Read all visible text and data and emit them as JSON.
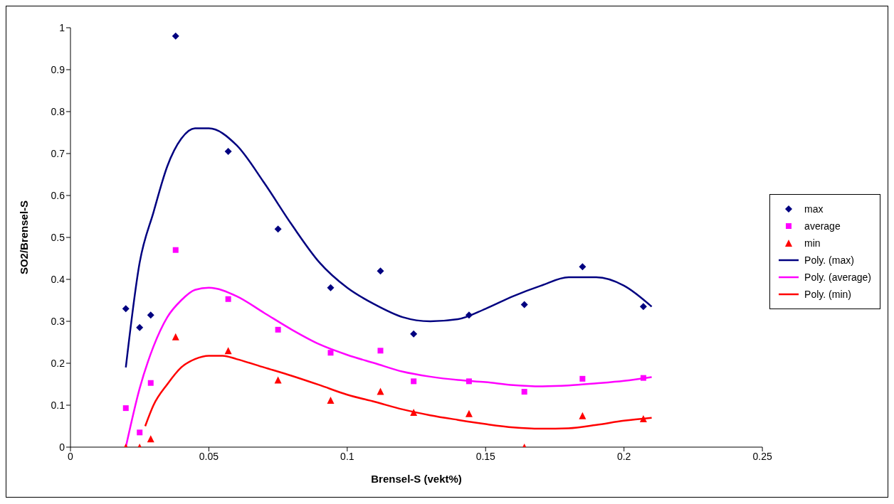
{
  "chart_data": {
    "type": "scatter",
    "xlabel": "Brensel-S (vekt%)",
    "ylabel": "SO2/Brensel-S",
    "xlim": [
      0,
      0.25
    ],
    "xticks": [
      0,
      0.05,
      0.1,
      0.15,
      0.2,
      0.25
    ],
    "ylim": [
      0,
      1
    ],
    "yticks": [
      0,
      0.1,
      0.2,
      0.3,
      0.4,
      0.5,
      0.6,
      0.7,
      0.8,
      0.9,
      1
    ],
    "grid": false,
    "legend": "right",
    "x": [
      0.02,
      0.025,
      0.029,
      0.038,
      0.057,
      0.075,
      0.094,
      0.112,
      0.124,
      0.144,
      0.164,
      0.185,
      0.207
    ],
    "series": [
      {
        "name": "max",
        "color": "#000080",
        "marker": "diamond",
        "values": [
          0.33,
          0.285,
          0.315,
          0.98,
          0.705,
          0.52,
          0.38,
          0.42,
          0.27,
          0.315,
          0.34,
          0.43,
          0.335
        ]
      },
      {
        "name": "average",
        "color": "#ff00ff",
        "marker": "square",
        "values": [
          0.093,
          0.035,
          0.153,
          0.47,
          0.353,
          0.28,
          0.225,
          0.23,
          0.157,
          0.157,
          0.132,
          0.163,
          0.165
        ]
      },
      {
        "name": "min",
        "color": "#ff0000",
        "marker": "triangle",
        "values": [
          0,
          0,
          0.02,
          0.263,
          0.23,
          0.16,
          0.112,
          0.133,
          0.083,
          0.08,
          0,
          0.075,
          0.068
        ]
      },
      {
        "name": "Poly. (max)",
        "type": "line",
        "marker": "none",
        "color": "#000080",
        "x": [
          0.02,
          0.025,
          0.03,
          0.035,
          0.04,
          0.045,
          0.05,
          0.06,
          0.07,
          0.08,
          0.09,
          0.1,
          0.11,
          0.12,
          0.13,
          0.14,
          0.15,
          0.16,
          0.17,
          0.18,
          0.19,
          0.2,
          0.21
        ],
        "values": [
          0.19,
          0.44,
          0.56,
          0.67,
          0.735,
          0.76,
          0.76,
          0.72,
          0.63,
          0.53,
          0.44,
          0.38,
          0.34,
          0.31,
          0.3,
          0.305,
          0.33,
          0.36,
          0.385,
          0.405,
          0.405,
          0.385,
          0.335
        ]
      },
      {
        "name": "Poly. (average)",
        "type": "line",
        "marker": "none",
        "color": "#ff00ff",
        "x": [
          0.02,
          0.025,
          0.03,
          0.035,
          0.04,
          0.045,
          0.05,
          0.06,
          0.07,
          0.08,
          0.09,
          0.1,
          0.11,
          0.12,
          0.13,
          0.14,
          0.15,
          0.16,
          0.17,
          0.18,
          0.19,
          0.2,
          0.21
        ],
        "values": [
          0,
          0.14,
          0.24,
          0.31,
          0.35,
          0.375,
          0.38,
          0.36,
          0.32,
          0.28,
          0.245,
          0.22,
          0.2,
          0.18,
          0.168,
          0.16,
          0.155,
          0.148,
          0.145,
          0.147,
          0.152,
          0.158,
          0.167
        ]
      },
      {
        "name": "Poly. (min)",
        "type": "line",
        "marker": "none",
        "color": "#ff0000",
        "x": [
          0.027,
          0.03,
          0.035,
          0.04,
          0.045,
          0.05,
          0.055,
          0.06,
          0.07,
          0.08,
          0.09,
          0.1,
          0.11,
          0.12,
          0.13,
          0.14,
          0.15,
          0.16,
          0.17,
          0.18,
          0.19,
          0.2,
          0.21
        ],
        "values": [
          0.05,
          0.1,
          0.15,
          0.19,
          0.21,
          0.218,
          0.218,
          0.21,
          0.19,
          0.17,
          0.148,
          0.125,
          0.108,
          0.09,
          0.076,
          0.065,
          0.055,
          0.047,
          0.044,
          0.045,
          0.053,
          0.063,
          0.07
        ]
      }
    ]
  }
}
